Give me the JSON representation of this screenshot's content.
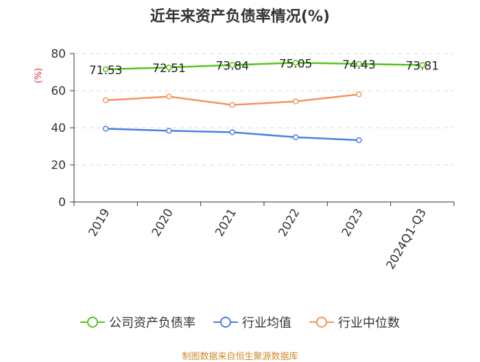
{
  "chart_data": {
    "type": "line",
    "title": "近年来资产负债率情况(%)",
    "ylabel": "(%)",
    "ylim": [
      0,
      80
    ],
    "yticks": [
      0,
      20,
      40,
      60,
      80
    ],
    "categories": [
      "2019",
      "2020",
      "2021",
      "2022",
      "2023",
      "2024Q1-Q3"
    ],
    "grid": true,
    "legend_position": "bottom",
    "series": [
      {
        "name": "公司资产负债率",
        "color": "#52c41a",
        "values": [
          71.53,
          72.51,
          73.84,
          75.05,
          74.43,
          73.81
        ],
        "labels": [
          "71.53",
          "72.51",
          "73.84",
          "75.05",
          "74.43",
          "73.81"
        ]
      },
      {
        "name": "行业均值",
        "color": "#4a7fe0",
        "values": [
          39.5,
          38.4,
          37.6,
          34.9,
          33.3,
          null
        ]
      },
      {
        "name": "行业中位数",
        "color": "#f4925e",
        "values": [
          54.8,
          56.8,
          52.3,
          54.2,
          58.0,
          null
        ]
      }
    ]
  },
  "source": "制图数据来自恒生聚源数据库"
}
